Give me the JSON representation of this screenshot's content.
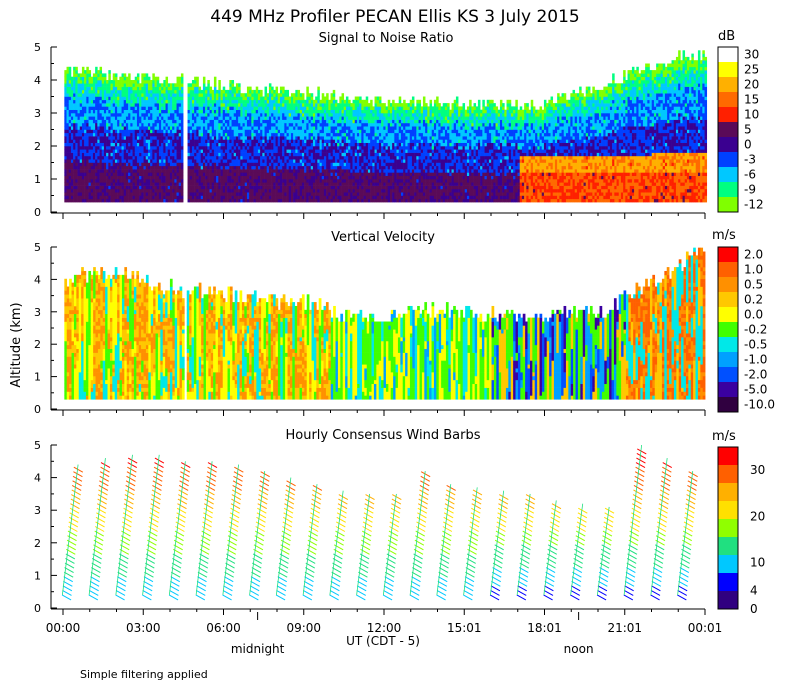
{
  "title": "449 MHz Profiler PECAN Ellis KS   3 July 2015",
  "ylabel": "Altitude (km)",
  "xlabel": "UT  (CDT - 5)",
  "note": "Simple filtering applied",
  "x_ticks": [
    "00:00",
    "03:00",
    "06:00",
    "09:00",
    "12:00",
    "15:01",
    "18:01",
    "21:01",
    "00:01"
  ],
  "y_ticks": [
    "0",
    "1",
    "2",
    "3",
    "4",
    "5"
  ],
  "markers": [
    {
      "label": "midnight",
      "hour": 7.5
    },
    {
      "label": "noon",
      "hour": 19.5
    }
  ],
  "chart_data": [
    {
      "type": "heatmap",
      "title": "Signal to Noise Ratio",
      "unit": "dB",
      "xlim_hours": [
        0,
        24
      ],
      "ylim_km": [
        0,
        5
      ],
      "data_gap_hours": [
        4.45,
        4.6
      ],
      "colorbar_labels": [
        "30",
        "25",
        "20",
        "15",
        "10",
        "5",
        "0",
        "-3",
        "-6",
        "-9",
        "-12"
      ],
      "colorbar_colors": [
        "#ffffff",
        "#ffff00",
        "#ffb000",
        "#ff6a00",
        "#ff2000",
        "#5a0a58",
        "#3a0090",
        "#0040ff",
        "#00c8ff",
        "#00ff80",
        "#80ff00"
      ],
      "profiles": [
        {
          "hour": 1,
          "top_km": 4.2
        },
        {
          "hour": 6,
          "top_km": 3.8
        },
        {
          "hour": 12,
          "top_km": 3.3
        },
        {
          "hour": 18,
          "top_km": 3.2
        },
        {
          "hour": 23,
          "top_km": 4.7
        }
      ]
    },
    {
      "type": "heatmap",
      "title": "Vertical Velocity",
      "unit": "m/s",
      "xlim_hours": [
        0,
        24
      ],
      "ylim_km": [
        0,
        5
      ],
      "data_gap_hours": [
        4.45,
        4.6
      ],
      "colorbar_labels": [
        "2.0",
        "1.0",
        "0.5",
        "0.2",
        "0.0",
        "-0.2",
        "-0.5",
        "-1.0",
        "-2.0",
        "-5.0",
        "-10.0"
      ],
      "colorbar_colors": [
        "#ff0000",
        "#ff6000",
        "#ff9000",
        "#ffc800",
        "#ffff00",
        "#40ff00",
        "#00e8e8",
        "#00a0ff",
        "#0050ff",
        "#3a00a0",
        "#300040"
      ]
    },
    {
      "type": "scatter",
      "title": "Hourly Consensus Wind Barbs",
      "unit": "m/s",
      "xlim_hours": [
        0,
        24
      ],
      "ylim_km": [
        0,
        5
      ],
      "colorbar_labels": [
        "30",
        "20",
        "10",
        "4",
        "0"
      ],
      "colorbar_values": [
        30,
        20,
        10,
        4,
        0
      ],
      "colorbar_colors": [
        "#ff0000",
        "#ff6000",
        "#ffb000",
        "#ffe000",
        "#90ff00",
        "#20e080",
        "#00c8ff",
        "#0000ff",
        "#300080"
      ],
      "barb_columns": [
        {
          "hour": 0.5,
          "top_km": 4.4
        },
        {
          "hour": 1.5,
          "top_km": 4.6
        },
        {
          "hour": 2.5,
          "top_km": 4.7
        },
        {
          "hour": 3.5,
          "top_km": 4.7
        },
        {
          "hour": 4.5,
          "top_km": 4.5
        },
        {
          "hour": 5.5,
          "top_km": 4.5
        },
        {
          "hour": 6.5,
          "top_km": 4.4
        },
        {
          "hour": 7.5,
          "top_km": 4.2
        },
        {
          "hour": 8.5,
          "top_km": 4.0
        },
        {
          "hour": 9.5,
          "top_km": 3.8
        },
        {
          "hour": 10.5,
          "top_km": 3.6
        },
        {
          "hour": 11.5,
          "top_km": 3.5
        },
        {
          "hour": 12.5,
          "top_km": 3.5
        },
        {
          "hour": 13.5,
          "top_km": 4.2
        },
        {
          "hour": 14.5,
          "top_km": 3.8
        },
        {
          "hour": 15.5,
          "top_km": 3.7
        },
        {
          "hour": 16.5,
          "top_km": 3.6
        },
        {
          "hour": 17.5,
          "top_km": 3.5
        },
        {
          "hour": 18.5,
          "top_km": 3.3
        },
        {
          "hour": 19.5,
          "top_km": 3.2
        },
        {
          "hour": 20.5,
          "top_km": 3.1
        },
        {
          "hour": 21.5,
          "top_km": 5.0
        },
        {
          "hour": 22.5,
          "top_km": 4.6
        },
        {
          "hour": 23.5,
          "top_km": 4.2
        }
      ]
    }
  ]
}
